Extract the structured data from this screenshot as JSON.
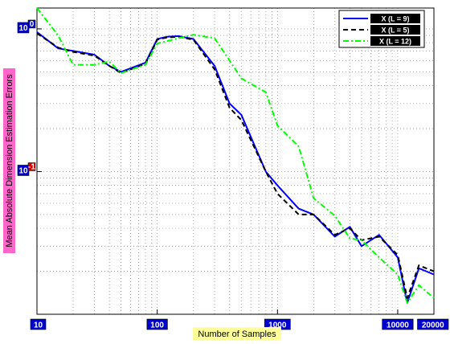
{
  "chart_data": {
    "type": "line",
    "title": "",
    "xlabel": "Number of Samples",
    "ylabel": "Mean Absolute Dimension Estimation Errors",
    "x_scale": "log",
    "y_scale": "log",
    "xlim": [
      10,
      20000
    ],
    "ylim": [
      0.01,
      1.4
    ],
    "x_ticks": [
      {
        "value": 10,
        "label": "10"
      },
      {
        "value": 100,
        "label": "100"
      },
      {
        "value": 1000,
        "label": "1000"
      },
      {
        "value": 10000,
        "label": "10000"
      },
      {
        "value": 20000,
        "label": "20000"
      }
    ],
    "y_ticks": [
      {
        "value": 1,
        "label": "10",
        "exp": "0"
      },
      {
        "value": 0.1,
        "label": "10",
        "exp": "-1"
      }
    ],
    "grid": true,
    "legend_position": "top-right",
    "x": [
      10,
      15,
      20,
      30,
      40,
      50,
      80,
      100,
      120,
      150,
      200,
      300,
      400,
      500,
      800,
      1000,
      1500,
      2000,
      3000,
      4000,
      5000,
      7000,
      10000,
      12000,
      15000,
      20000
    ],
    "series": [
      {
        "name": "X (L = 9)",
        "color": "#0000ff",
        "dash": "solid",
        "values": [
          0.95,
          0.73,
          0.7,
          0.66,
          0.55,
          0.5,
          0.58,
          0.85,
          0.88,
          0.89,
          0.85,
          0.55,
          0.3,
          0.25,
          0.1,
          0.08,
          0.055,
          0.05,
          0.035,
          0.041,
          0.03,
          0.036,
          0.025,
          0.012,
          0.021,
          0.019
        ]
      },
      {
        "name": "X (L = 5)",
        "color": "#000000",
        "dash": "dashed",
        "values": [
          0.93,
          0.74,
          0.69,
          0.65,
          0.55,
          0.49,
          0.57,
          0.84,
          0.87,
          0.88,
          0.84,
          0.52,
          0.28,
          0.23,
          0.1,
          0.07,
          0.05,
          0.05,
          0.036,
          0.04,
          0.033,
          0.035,
          0.026,
          0.013,
          0.022,
          0.02
        ]
      },
      {
        "name": "X (L = 12)",
        "color": "#00ff00",
        "dash": "dashdot",
        "values": [
          1.4,
          0.9,
          0.56,
          0.56,
          0.59,
          0.49,
          0.56,
          0.79,
          0.82,
          0.86,
          0.91,
          0.86,
          0.6,
          0.45,
          0.36,
          0.21,
          0.15,
          0.065,
          0.049,
          0.034,
          0.033,
          0.025,
          0.019,
          0.012,
          0.016,
          0.013
        ]
      }
    ]
  }
}
